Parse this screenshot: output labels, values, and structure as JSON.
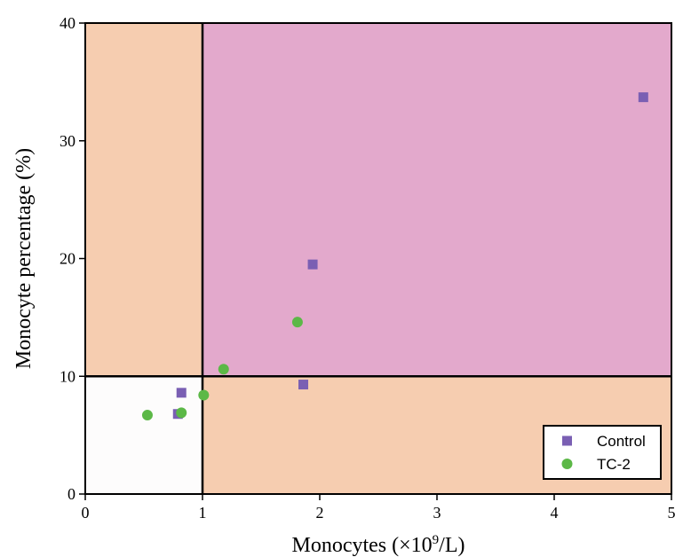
{
  "chart_data": {
    "type": "scatter",
    "xlabel_main": "Monocytes (×10",
    "xlabel_sup": "9",
    "xlabel_end": "/L)",
    "ylabel": "Monocyte percentage (%)",
    "xlim": [
      0,
      5
    ],
    "ylim": [
      0,
      40
    ],
    "x_ticks": [
      0,
      1,
      2,
      3,
      4,
      5
    ],
    "y_ticks": [
      0,
      10,
      20,
      30,
      40
    ],
    "grid": false,
    "legend_position": "bottom-right",
    "threshold_x": 1,
    "threshold_y": 10,
    "regions": [
      {
        "x": [
          0,
          1
        ],
        "y": [
          10,
          40
        ],
        "color": "#f6cdb0"
      },
      {
        "x": [
          1,
          5
        ],
        "y": [
          10,
          40
        ],
        "color": "#e3a9cc"
      },
      {
        "x": [
          1,
          5
        ],
        "y": [
          0,
          10
        ],
        "color": "#f6cdb0"
      },
      {
        "x": [
          0,
          1
        ],
        "y": [
          0,
          10
        ],
        "color": "#fdfcfc"
      }
    ],
    "series": [
      {
        "name": "Control",
        "marker": "square",
        "color": "#7a5fb3",
        "points": [
          [
            0.79,
            6.8
          ],
          [
            0.82,
            8.6
          ],
          [
            1.86,
            9.3
          ],
          [
            1.94,
            19.5
          ],
          [
            4.76,
            33.7
          ]
        ]
      },
      {
        "name": "TC-2",
        "marker": "circle",
        "color": "#5cb847",
        "points": [
          [
            0.53,
            6.7
          ],
          [
            0.82,
            6.9
          ],
          [
            1.01,
            8.4
          ],
          [
            1.18,
            10.6
          ],
          [
            1.81,
            14.6
          ]
        ]
      }
    ]
  }
}
